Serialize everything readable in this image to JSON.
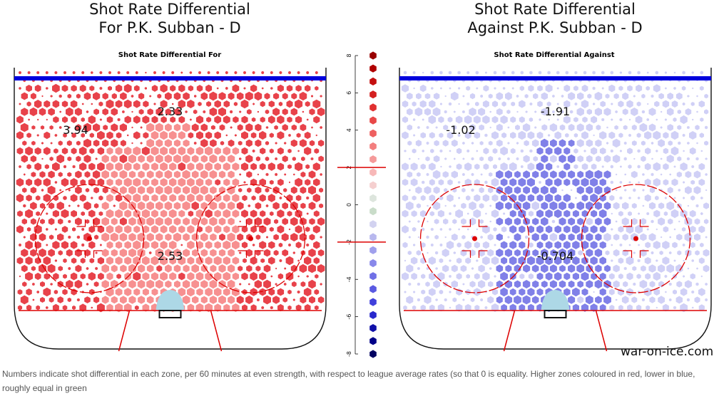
{
  "header": {
    "left_title_line1": "Shot Rate Differential",
    "left_title_line2": "For P.K. Subban - D",
    "right_title_line1": "Shot Rate Differential",
    "right_title_line2": "Against P.K. Subban - D"
  },
  "chart_data": [
    {
      "type": "heatmap",
      "title": "Shot Rate Differential For",
      "zones": [
        {
          "zone": "left point",
          "value": 3.94
        },
        {
          "zone": "center point",
          "value": 2.33
        },
        {
          "zone": "slot",
          "value": 2.53
        }
      ]
    },
    {
      "type": "heatmap",
      "title": "Shot Rate Differential Against",
      "zones": [
        {
          "zone": "left point",
          "value": -1.02
        },
        {
          "zone": "center point",
          "value": -1.91
        },
        {
          "zone": "slot",
          "value": -0.704
        }
      ]
    }
  ],
  "color_scale": {
    "ticks": [
      "8",
      "6",
      "4",
      "2",
      "0",
      "-2",
      "-4",
      "-6",
      "-8"
    ],
    "ylim": [
      -8,
      8
    ],
    "threshold_marks": [
      2,
      -2
    ],
    "swatches": [
      "#990000",
      "#b00000",
      "#c41010",
      "#d42020",
      "#e03030",
      "#e84848",
      "#ee6060",
      "#f37f7f",
      "#f59a9a",
      "#f7b8b8",
      "#f5cfcf",
      "#dde5dd",
      "#c9dcc9",
      "#d2d2f0",
      "#b8b8ee",
      "#a0a0ec",
      "#8888ea",
      "#7070e6",
      "#5a5ae2",
      "#4040dc",
      "#2828cc",
      "#1010a8",
      "#000088",
      "#000060"
    ],
    "colors": {
      "red": "#e8424a",
      "light_red": "#f79090",
      "blue": "#8080e8",
      "light_blue": "#d0d0f6",
      "rink_blue": "#0000dd",
      "rink_red": "#dd0000",
      "crease": "#add8e6"
    }
  },
  "footer": {
    "credit": "war-on-ice.com",
    "caption": "Numbers indicate shot differential in each zone, per 60 minutes at even strength, with respect to league average rates (so that 0 is equality. Higher zones coloured in red, lower in blue, roughly equal in green"
  }
}
